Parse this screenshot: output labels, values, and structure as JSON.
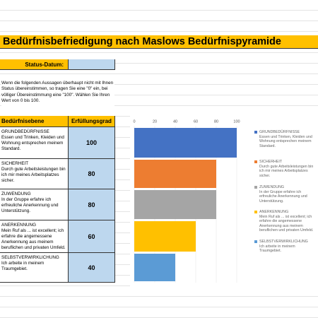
{
  "header": {
    "title": "Bedürfnisbefriedigung nach Maslows Bedürfnispyramide"
  },
  "status": {
    "label": "Status-Datum:"
  },
  "instructions": "Wenn die folgenden Aussagen überhaupt nicht mit Ihnen Status übereinstimmen, so tragen Sie eine \"0\" ein, bei völliger Übereinstimmung eine \"100\". Wählen Sie Ihren Wert von 0 bis 100.",
  "table": {
    "headers": [
      "Bedürfnisebene",
      "Erfüllungsgrad"
    ]
  },
  "chart_data": {
    "type": "bar",
    "orientation": "horizontal",
    "categories": [
      "GRUNDBEDÜRFNISSE\nEssen und Trinken, Kleiden und Wohnung entsprechen meinem Standard.",
      "SICHERHEIT\nDurch gute Arbeitsleistungen bin ich mir meines Arbeitsplatzes sicher.",
      "ZUWENDUNG\nIn der Gruppe erfahre ich erfreuliche Anerkennung und Unterstützung.",
      "ANERKENNUNG\nMein Ruf als ... ist excellent; ich erfahre die angemessene Anerkennung aus meinem beruflichen und privaten Umfeld.",
      "SELBSTVERWIRKLICHUNG\nIch arbeite in meinem Traumgebiet."
    ],
    "values": [
      100,
      80,
      80,
      60,
      40
    ],
    "colors": [
      "#4472c4",
      "#ed7d31",
      "#a5a5a5",
      "#ffc000",
      "#5b9bd5"
    ],
    "xlim": [
      0,
      100
    ],
    "xticks": [
      0,
      20,
      40,
      60,
      80,
      100
    ],
    "grid": true
  }
}
